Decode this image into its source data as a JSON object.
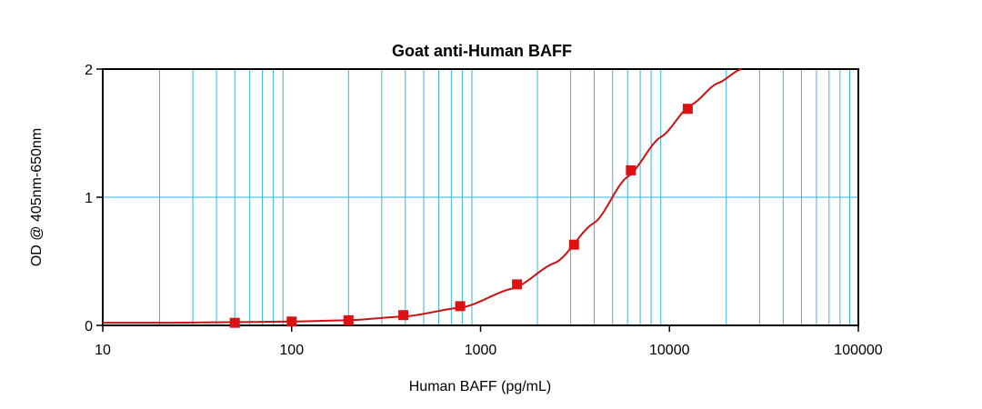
{
  "chart_data": {
    "type": "scatter",
    "title": "Goat anti-Human BAFF",
    "xlabel": "Human BAFF (pg/mL)",
    "ylabel": "OD @ 405nm-650nm",
    "x_scale": "log",
    "xlim": [
      10,
      100000
    ],
    "ylim": [
      0,
      2
    ],
    "x_ticks": [
      10,
      100,
      1000,
      10000,
      100000
    ],
    "x_tick_labels": [
      "10",
      "100",
      "1000",
      "10000",
      "100000"
    ],
    "y_ticks": [
      0,
      1,
      2
    ],
    "y_tick_labels": [
      "0",
      "1",
      "2"
    ],
    "grid": true,
    "points": {
      "x": [
        50,
        100,
        200,
        390,
        780,
        1560,
        3125,
        6250,
        12500
      ],
      "y": [
        0.02,
        0.03,
        0.04,
        0.08,
        0.15,
        0.32,
        0.63,
        1.21,
        1.69
      ]
    },
    "fit_curve": {
      "type": "4PL",
      "x": [
        10,
        20,
        50,
        100,
        200,
        400,
        800,
        1500,
        2500,
        4000,
        6000,
        9000,
        13000,
        18000,
        24000
      ],
      "y": [
        0.02,
        0.02,
        0.025,
        0.03,
        0.04,
        0.07,
        0.14,
        0.29,
        0.49,
        0.8,
        1.16,
        1.47,
        1.72,
        1.89,
        2.0
      ]
    },
    "colors": {
      "grid": "#33b5e5",
      "series": "#cc1111",
      "marker": "#dd1111",
      "axis": "#000000"
    }
  }
}
